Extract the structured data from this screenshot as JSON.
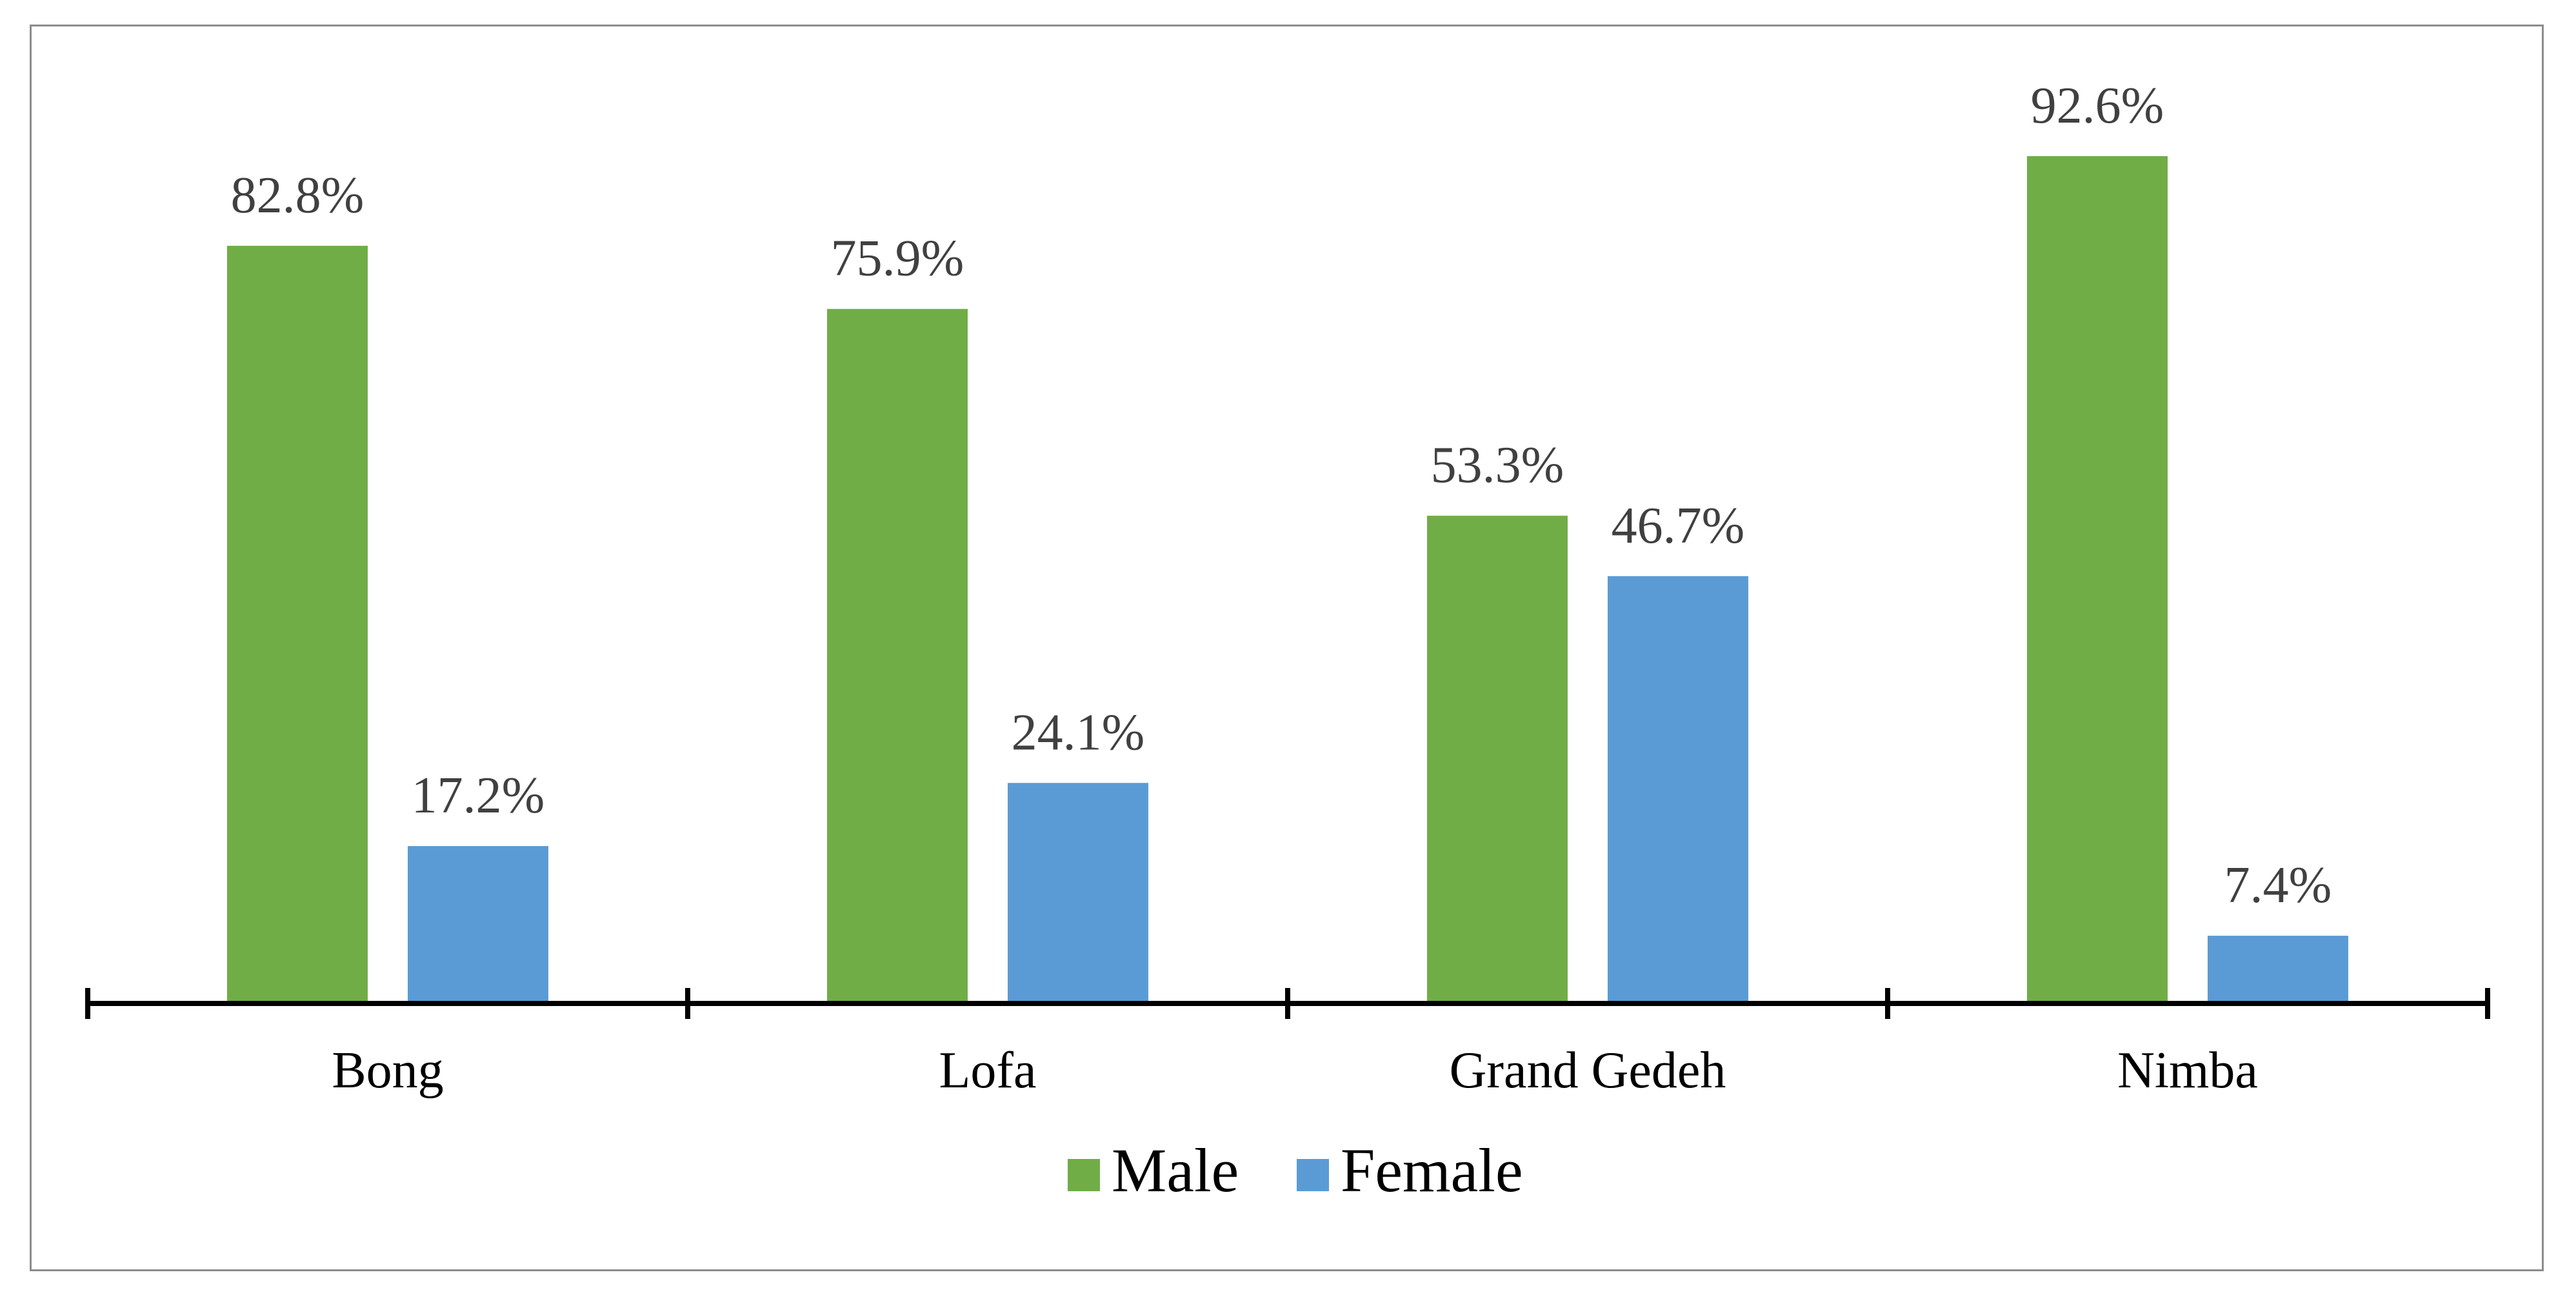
{
  "chart_data": {
    "type": "bar",
    "title": "",
    "xlabel": "",
    "ylabel": "",
    "categories": [
      "Bong",
      "Lofa",
      "Grand Gedeh",
      "Nimba"
    ],
    "series": [
      {
        "name": "Male",
        "values": [
          82.8,
          75.9,
          53.3,
          92.6
        ],
        "labels": [
          "82.8%",
          "75.9%",
          "53.3%",
          "92.6%"
        ],
        "color": "#70AD47"
      },
      {
        "name": "Female",
        "values": [
          17.2,
          24.1,
          46.7,
          7.4
        ],
        "labels": [
          "17.2%",
          "24.1%",
          "46.7%",
          "7.4%"
        ],
        "color": "#5B9BD5"
      }
    ],
    "ylim": [
      0,
      100
    ],
    "unit": "%",
    "grid": false,
    "legend_position": "bottom"
  }
}
